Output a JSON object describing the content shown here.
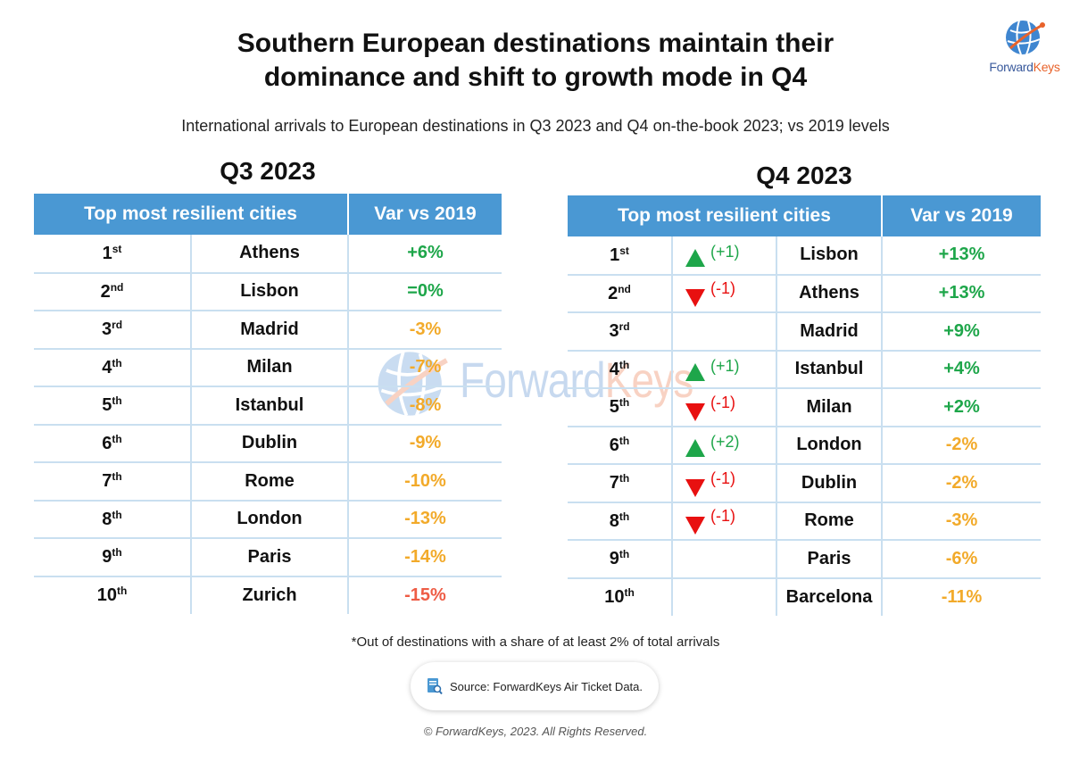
{
  "title_line1": "Southern European destinations maintain their",
  "title_line2": "dominance and shift to growth mode in Q4",
  "subtitle": "International arrivals to European destinations in Q3 2023 and Q4 on-the-book 2023; vs 2019 levels",
  "logo": {
    "brand_part1": "Forward",
    "brand_part2": "Keys"
  },
  "watermark": {
    "part1": "Forward",
    "part2": "Keys"
  },
  "colors": {
    "header_blue": "#4a98d3",
    "positive": "#1ea64a",
    "moderate": "#f2aa2a",
    "negative": "#ee5c45",
    "down_red": "#e81010"
  },
  "chart_data": [
    {
      "type": "table",
      "title": "Q3 2023",
      "columns": [
        "Top most resilient cities",
        "Var vs 2019"
      ],
      "rows": [
        {
          "rank": "1",
          "suffix": "st",
          "city": "Athens",
          "var": "+6%",
          "tone": "pos"
        },
        {
          "rank": "2",
          "suffix": "nd",
          "city": "Lisbon",
          "var": "=0%",
          "tone": "neu"
        },
        {
          "rank": "3",
          "suffix": "rd",
          "city": "Madrid",
          "var": "-3%",
          "tone": "amb"
        },
        {
          "rank": "4",
          "suffix": "th",
          "city": "Milan",
          "var": "-7%",
          "tone": "amb"
        },
        {
          "rank": "5",
          "suffix": "th",
          "city": "Istanbul",
          "var": "-8%",
          "tone": "amb"
        },
        {
          "rank": "6",
          "suffix": "th",
          "city": "Dublin",
          "var": "-9%",
          "tone": "amb"
        },
        {
          "rank": "7",
          "suffix": "th",
          "city": "Rome",
          "var": "-10%",
          "tone": "amb"
        },
        {
          "rank": "8",
          "suffix": "th",
          "city": "London",
          "var": "-13%",
          "tone": "amb"
        },
        {
          "rank": "9",
          "suffix": "th",
          "city": "Paris",
          "var": "-14%",
          "tone": "amb"
        },
        {
          "rank": "10",
          "suffix": "th",
          "city": "Zurich",
          "var": "-15%",
          "tone": "neg"
        }
      ]
    },
    {
      "type": "table",
      "title": "Q4 2023",
      "columns": [
        "Top most resilient cities",
        "Var vs 2019"
      ],
      "rows": [
        {
          "rank": "1",
          "suffix": "st",
          "change": "(+1)",
          "dir": "up",
          "city": "Lisbon",
          "var": "+13%",
          "tone": "pos"
        },
        {
          "rank": "2",
          "suffix": "nd",
          "change": "(-1)",
          "dir": "down",
          "city": "Athens",
          "var": "+13%",
          "tone": "pos"
        },
        {
          "rank": "3",
          "suffix": "rd",
          "change": "",
          "dir": "",
          "city": "Madrid",
          "var": "+9%",
          "tone": "pos"
        },
        {
          "rank": "4",
          "suffix": "th",
          "change": "(+1)",
          "dir": "up",
          "city": "Istanbul",
          "var": "+4%",
          "tone": "pos"
        },
        {
          "rank": "5",
          "suffix": "th",
          "change": "(-1)",
          "dir": "down",
          "city": "Milan",
          "var": "+2%",
          "tone": "pos"
        },
        {
          "rank": "6",
          "suffix": "th",
          "change": "(+2)",
          "dir": "up",
          "city": "London",
          "var": "-2%",
          "tone": "amb"
        },
        {
          "rank": "7",
          "suffix": "th",
          "change": "(-1)",
          "dir": "down",
          "city": "Dublin",
          "var": "-2%",
          "tone": "amb"
        },
        {
          "rank": "8",
          "suffix": "th",
          "change": "(-1)",
          "dir": "down",
          "city": "Rome",
          "var": "-3%",
          "tone": "amb"
        },
        {
          "rank": "9",
          "suffix": "th",
          "change": "",
          "dir": "",
          "city": "Paris",
          "var": "-6%",
          "tone": "amb"
        },
        {
          "rank": "10",
          "suffix": "th",
          "change": "",
          "dir": "",
          "city": "Barcelona",
          "var": "-11%",
          "tone": "amb"
        }
      ]
    }
  ],
  "footnote": "*Out of destinations with a share of at least 2% of total arrivals",
  "source": "Source: ForwardKeys Air Ticket Data.",
  "copyright": "© ForwardKeys, 2023. All Rights Reserved."
}
